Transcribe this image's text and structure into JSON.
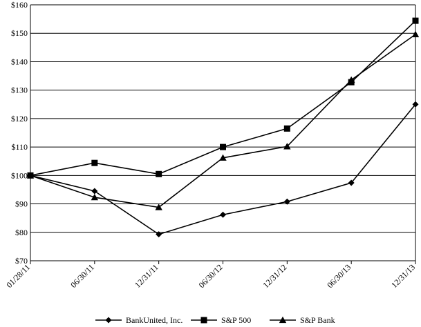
{
  "chart_data": {
    "type": "line",
    "title": "",
    "xlabel": "",
    "ylabel": "",
    "categories": [
      "01/28/11",
      "06/30/11",
      "12/31/11",
      "06/30/12",
      "12/31/12",
      "06/30/13",
      "12/31/13"
    ],
    "ylim": [
      70,
      160
    ],
    "yticks": [
      70,
      80,
      90,
      100,
      110,
      120,
      130,
      140,
      150,
      160
    ],
    "ytick_labels": [
      "$70",
      "$80",
      "$90",
      "$100",
      "$110",
      "$120",
      "$130",
      "$140",
      "$150",
      "$160"
    ],
    "grid": "horizontal",
    "legend": "bottom",
    "series": [
      {
        "name": "BankUnited, Inc.",
        "marker": "diamond",
        "values": [
          100,
          94.5,
          79.3,
          86.2,
          90.8,
          97.4,
          125.0
        ]
      },
      {
        "name": "S&P 500",
        "marker": "square",
        "values": [
          100,
          104.4,
          100.5,
          110.0,
          116.5,
          132.8,
          154.4
        ]
      },
      {
        "name": "S&P Bank",
        "marker": "triangle",
        "values": [
          100,
          92.3,
          88.8,
          106.2,
          110.2,
          133.6,
          149.6
        ]
      }
    ],
    "colors": {
      "line": "#000000",
      "grid": "#000000",
      "background": "#ffffff"
    }
  }
}
